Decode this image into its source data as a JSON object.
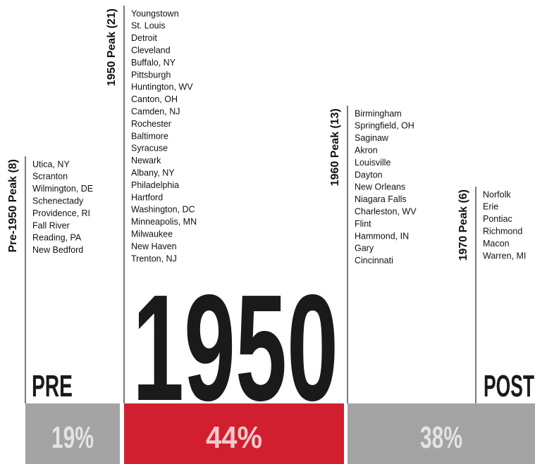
{
  "columns": [
    {
      "label": "Pre-1950 Peak (8)",
      "cities": [
        "Utica,  NY",
        "Scranton",
        "Wilmington, DE",
        "Schenectady",
        "Providence, RI",
        "Fall River",
        "Reading, PA",
        "New Bedford"
      ]
    },
    {
      "label": "1950 Peak (21)",
      "cities": [
        "Youngstown",
        "St. Louis",
        "Detroit",
        "Cleveland",
        "Buffalo, NY",
        "Pittsburgh",
        "Huntington, WV",
        "Canton, OH",
        "Camden, NJ",
        "Rochester",
        "Baltimore",
        "Syracuse",
        "Newark",
        "Albany, NY",
        "Philadelphia",
        "Hartford",
        "Washington, DC",
        "Minneapolis, MN",
        "Milwaukee",
        "New Haven",
        "Trenton, NJ"
      ]
    },
    {
      "label": "1960 Peak (13)",
      "cities": [
        "Birmingham",
        "Springfield, OH",
        "Saginaw",
        "Akron",
        "Louisville",
        "Dayton",
        "New Orleans",
        "Niagara Falls",
        "Charleston, WV",
        "Flint",
        "Hammond, IN",
        "Gary",
        "Cincinnati"
      ]
    },
    {
      "label": "1970 Peak (6)",
      "cities": [
        "Norfolk",
        "Erie",
        "Pontiac",
        "Richmond",
        "Macon",
        "Warren, MI"
      ]
    }
  ],
  "eras": [
    "PRE",
    "1950",
    "POST"
  ],
  "shares": [
    "19%",
    "44%",
    "38%"
  ]
}
